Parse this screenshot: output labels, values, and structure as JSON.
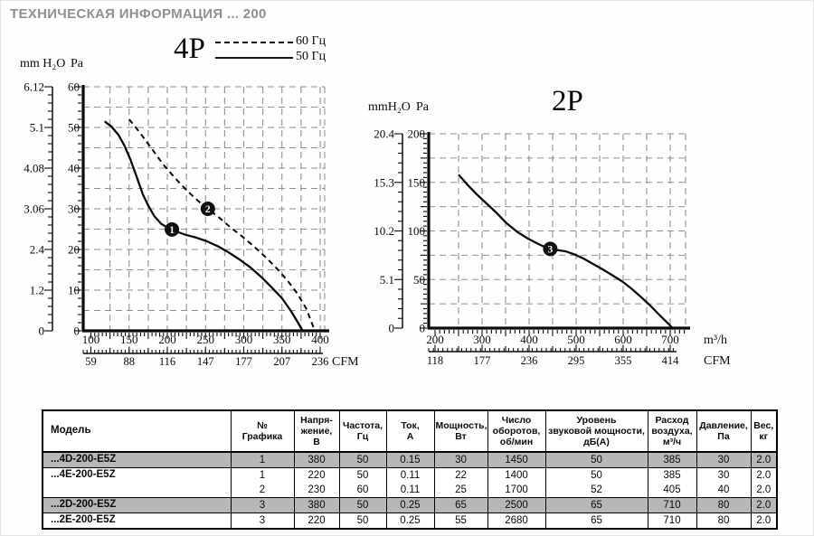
{
  "page": {
    "title": "ТЕХНИЧЕСКАЯ ИНФОРМАЦИЯ  ... 200"
  },
  "chart_data": [
    {
      "id": "p4",
      "type": "line",
      "title": "4P",
      "legend": [
        {
          "label": "60 Гц",
          "style": "dashed"
        },
        {
          "label": "50 Гц",
          "style": "solid"
        }
      ],
      "y_axis": {
        "label": "Pa",
        "secondary_label": "mm H₂O",
        "ticks": [
          0,
          10,
          20,
          30,
          40,
          50,
          60
        ],
        "secondary_ticks": [
          "0",
          "1.2",
          "2.4",
          "3.06",
          "4.08",
          "5.1",
          "6.12"
        ],
        "ylim": [
          0,
          60
        ]
      },
      "x_axis": {
        "ticks": [
          100,
          150,
          200,
          250,
          300,
          350,
          400
        ],
        "xlim": [
          100,
          400
        ],
        "unit": ""
      },
      "cfm_axis": {
        "ticks": [
          "59",
          "88",
          "116",
          "147",
          "177",
          "207",
          "236"
        ],
        "label": "CFM"
      },
      "grid": {
        "on": true,
        "x_step": 25,
        "y_step": 5
      },
      "series": [
        {
          "name": "50 Гц",
          "style": "solid",
          "points": [
            [
              118,
              51.5
            ],
            [
              127,
              50.2
            ],
            [
              136,
              48.2
            ],
            [
              144,
              45.5
            ],
            [
              152,
              42
            ],
            [
              160,
              37.8
            ],
            [
              168,
              33.5
            ],
            [
              175,
              30.8
            ],
            [
              183,
              28.2
            ],
            [
              192,
              26.3
            ],
            [
              202,
              25.2
            ],
            [
              212,
              24.4
            ],
            [
              224,
              23.6
            ],
            [
              238,
              22.9
            ],
            [
              252,
              22
            ],
            [
              266,
              20.8
            ],
            [
              280,
              19.3
            ],
            [
              294,
              17.6
            ],
            [
              308,
              15.7
            ],
            [
              322,
              13.4
            ],
            [
              336,
              10.8
            ],
            [
              350,
              8
            ],
            [
              362,
              4.8
            ],
            [
              371,
              2
            ],
            [
              377,
              0
            ]
          ]
        },
        {
          "name": "60 Гц",
          "style": "dashed",
          "points": [
            [
              150,
              52
            ],
            [
              163,
              49
            ],
            [
              178,
              45.2
            ],
            [
              195,
              40.8
            ],
            [
              210,
              37.6
            ],
            [
              225,
              34.6
            ],
            [
              240,
              32
            ],
            [
              253,
              30
            ],
            [
              268,
              27.8
            ],
            [
              283,
              25.4
            ],
            [
              298,
              23.2
            ],
            [
              313,
              20.8
            ],
            [
              328,
              18.2
            ],
            [
              343,
              15.4
            ],
            [
              357,
              12.4
            ],
            [
              370,
              9.2
            ],
            [
              382,
              5.4
            ],
            [
              393,
              0
            ]
          ]
        }
      ],
      "markers": [
        {
          "label": "1",
          "x": 206,
          "y": 24.9
        },
        {
          "label": "2",
          "x": 253,
          "y": 30
        }
      ]
    },
    {
      "id": "p2",
      "type": "line",
      "title": "2P",
      "y_axis": {
        "label": "Pa",
        "secondary_label": "mmH₂O",
        "ticks": [
          0,
          50,
          100,
          150,
          200
        ],
        "secondary_ticks": [
          "0",
          "5.1",
          "10.2",
          "15.3",
          "20.4"
        ],
        "ylim": [
          0,
          200
        ]
      },
      "x_axis": {
        "ticks": [
          200,
          300,
          400,
          500,
          600,
          700
        ],
        "xlim": [
          200,
          750
        ],
        "unit": "m³/h"
      },
      "cfm_axis": {
        "ticks": [
          "118",
          "177",
          "236",
          "295",
          "355",
          "414"
        ],
        "label": "CFM"
      },
      "grid": {
        "on": true,
        "x_step": 50,
        "y_step": 25
      },
      "series": [
        {
          "name": "50 Гц",
          "style": "solid",
          "points": [
            [
              250,
              158
            ],
            [
              268,
              148
            ],
            [
              288,
              138
            ],
            [
              310,
              128
            ],
            [
              330,
              119
            ],
            [
              352,
              108
            ],
            [
              375,
              99
            ],
            [
              398,
              92
            ],
            [
              420,
              86.5
            ],
            [
              438,
              82.5
            ],
            [
              458,
              80.5
            ],
            [
              478,
              79
            ],
            [
              498,
              75.5
            ],
            [
              518,
              71
            ],
            [
              538,
              65.5
            ],
            [
              558,
              60
            ],
            [
              578,
              54
            ],
            [
              598,
              48
            ],
            [
              618,
              40.5
            ],
            [
              638,
              32
            ],
            [
              658,
              23
            ],
            [
              678,
              13
            ],
            [
              695,
              5
            ],
            [
              705,
              0
            ]
          ]
        }
      ],
      "markers": [
        {
          "label": "3",
          "x": 445,
          "y": 81.5
        }
      ]
    }
  ],
  "table": {
    "headers": [
      "Модель",
      "№\nГрафика",
      "Напря-\nжение,\nВ",
      "Частота,\nГц",
      "Ток,\nА",
      "Мощность,\nВт",
      "Число\nоборотов,\nоб/мин",
      "Уровень\nзвуковой мощности,\nдБ(А)",
      "Расход\nвоздуха,\nм³/ч",
      "Давление,\nПа",
      "Вес,\nкг"
    ],
    "rows": [
      {
        "model": "...4D-200-E5Z",
        "shaded": true,
        "rowspan": 1,
        "values": [
          "1",
          "380",
          "50",
          "0.15",
          "30",
          "1450",
          "50",
          "385",
          "30",
          "2.0"
        ]
      },
      {
        "model": "...4E-200-E5Z",
        "shaded": false,
        "rowspan": 2,
        "values": [
          "1",
          "220",
          "50",
          "0.11",
          "22",
          "1400",
          "50",
          "385",
          "30",
          "2.0"
        ]
      },
      {
        "model": "",
        "shaded": false,
        "rowspan": 0,
        "values": [
          "2",
          "230",
          "60",
          "0.11",
          "25",
          "1700",
          "52",
          "405",
          "40",
          "2.0"
        ]
      },
      {
        "model": "...2D-200-E5Z",
        "shaded": true,
        "rowspan": 1,
        "values": [
          "3",
          "380",
          "50",
          "0.25",
          "65",
          "2500",
          "65",
          "710",
          "80",
          "2.0"
        ]
      },
      {
        "model": "...2E-200-E5Z",
        "shaded": false,
        "rowspan": 1,
        "values": [
          "3",
          "220",
          "50",
          "0.25",
          "55",
          "2680",
          "65",
          "710",
          "80",
          "2.0"
        ]
      }
    ]
  },
  "colors": {
    "title_text": "#8d9197",
    "grid": "#8f8f8f",
    "curve": "#0a0a0a",
    "table_shaded_row": "#b7b7b7",
    "border": "#000000"
  }
}
